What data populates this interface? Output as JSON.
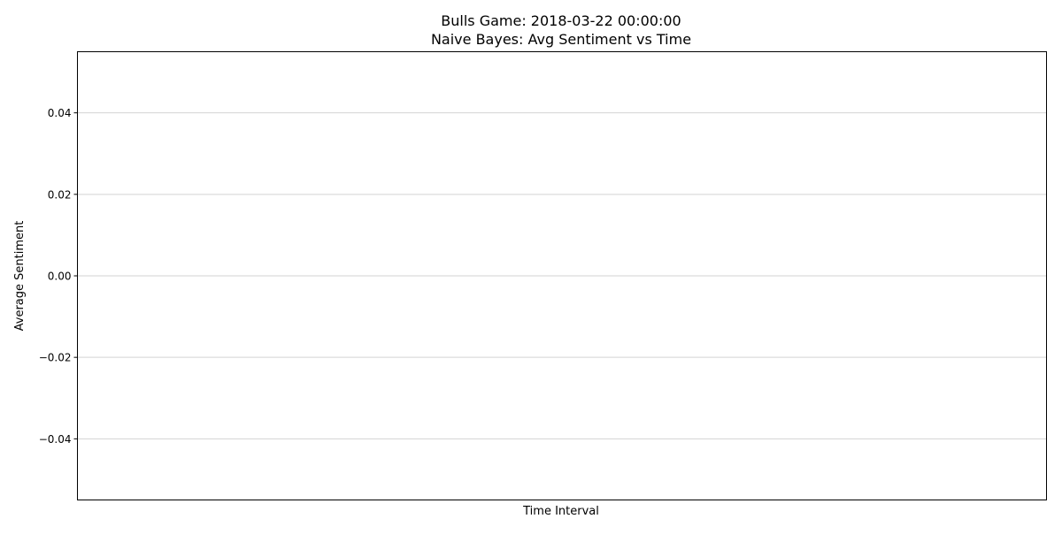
{
  "chart_data": {
    "type": "line",
    "title": "Bulls Game: 2018-03-22 00:00:00",
    "subtitle": "Naive Bayes: Avg Sentiment vs Time",
    "xlabel": "Time Interval",
    "ylabel": "Average Sentiment",
    "ylim": [
      -0.055,
      0.055
    ],
    "yticks": [
      -0.04,
      -0.02,
      0.0,
      0.02,
      0.04
    ],
    "ytick_labels": [
      "−0.04",
      "−0.02",
      "0.00",
      "0.02",
      "0.04"
    ],
    "xticks": [],
    "grid": "horizontal",
    "series": [],
    "colors": {
      "grid": "#d3d3d3",
      "axes": "#000000",
      "background": "#ffffff"
    }
  }
}
